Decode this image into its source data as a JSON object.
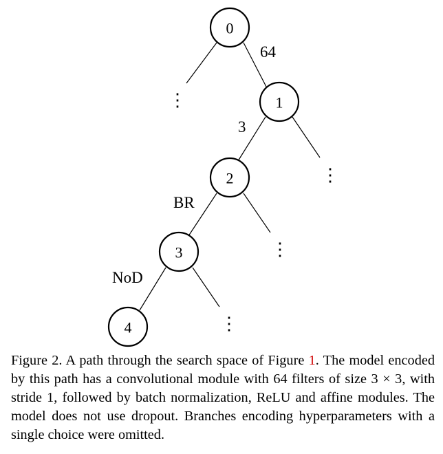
{
  "tree": {
    "nodes": [
      {
        "id": "0",
        "label": "0"
      },
      {
        "id": "1",
        "label": "1"
      },
      {
        "id": "2",
        "label": "2"
      },
      {
        "id": "3",
        "label": "3"
      },
      {
        "id": "4",
        "label": "4"
      }
    ],
    "edge_labels": {
      "e01": "64",
      "e12": "3",
      "e23": "BR",
      "e34": "NoD"
    },
    "ellipsis": "⋮"
  },
  "caption": {
    "part1": "Figure 2. A path through the search space of Figure ",
    "ref": "1",
    "part2": ". The model encoded by this path has a convolutional module with 64 filters of size 3 × 3, with stride 1, followed by batch normalization, ReLU and affine modules. The model does not use dropout. Branches encoding hyperparameters with a single choice were omitted."
  }
}
